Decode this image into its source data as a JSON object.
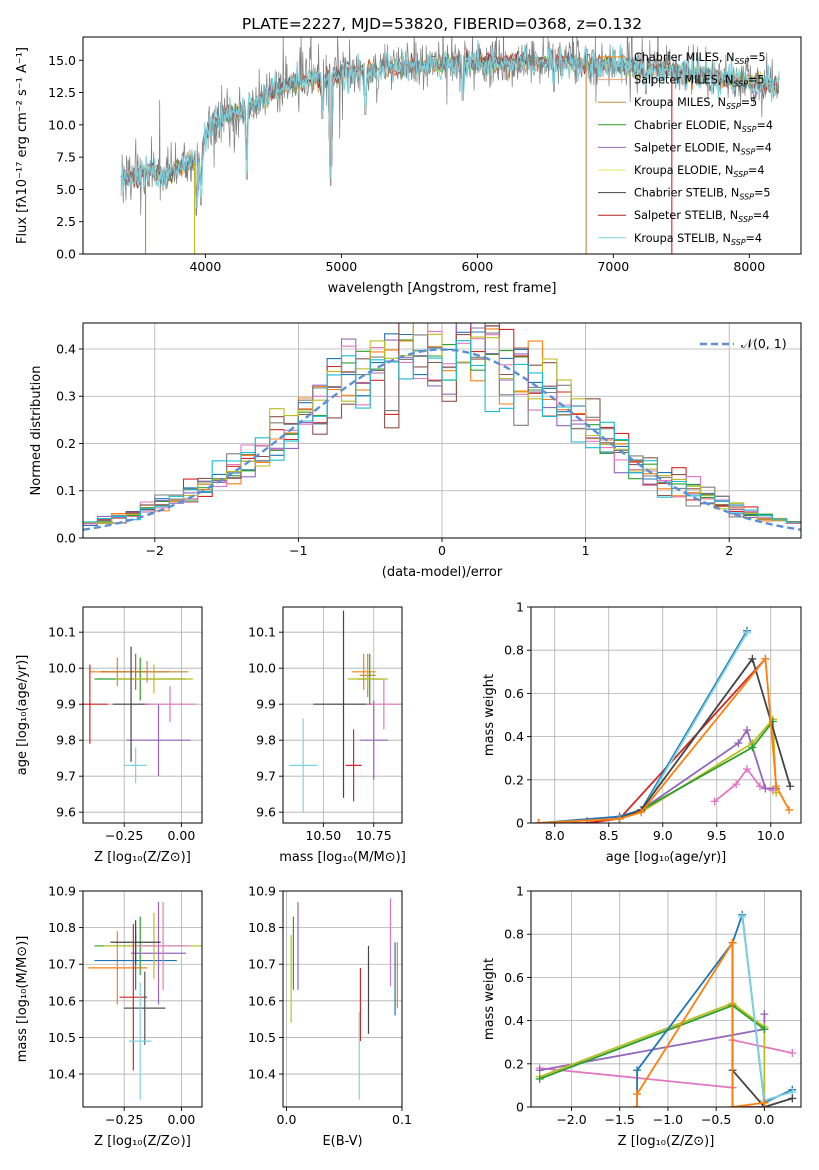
{
  "figure": {
    "title": "PLATE=2227, MJD=53820, FIBERID=0368, z=0.132"
  },
  "colors": [
    "#1f77b4",
    "#ff7f0e",
    "#2ca02c",
    "#d62728",
    "#9467bd",
    "#8c564b",
    "#e377c2",
    "#7f7f7f",
    "#bcbd22",
    "#17becf"
  ],
  "legend": {
    "entries": [
      {
        "model": "Chabrier MILES",
        "n_ssp": 5,
        "color": "#ff7f0e"
      },
      {
        "model": "Salpeter MILES",
        "n_ssp": 5,
        "color": "#f3a06a"
      },
      {
        "model": "Kroupa MILES",
        "n_ssp": 5,
        "color": "#c58a3c"
      },
      {
        "model": "Chabrier ELODIE",
        "n_ssp": 4,
        "color": "#2ca02c"
      },
      {
        "model": "Salpeter ELODIE",
        "n_ssp": 4,
        "color": "#9467bd"
      },
      {
        "model": "Kroupa ELODIE",
        "n_ssp": 4,
        "color": "#dfe86a"
      },
      {
        "model": "Chabrier STELIB",
        "n_ssp": 5,
        "color": "#444444"
      },
      {
        "model": "Salpeter STELIB",
        "n_ssp": 4,
        "color": "#b22222"
      },
      {
        "model": "Kroupa STELIB",
        "n_ssp": 4,
        "color": "#7fd3e0"
      }
    ],
    "n_prefix": "N",
    "n_sub": "SSP",
    "n_eq": "="
  },
  "chart_data": [
    {
      "id": "spectrum",
      "type": "line",
      "xlabel": "wavelength [Angstrom, rest frame]",
      "ylabel": "Flux [fλ10⁻¹⁷ erg cm⁻² s⁻¹ A⁻¹]",
      "xlim": [
        3100,
        8380
      ],
      "ylim": [
        0,
        16.8
      ],
      "xticks": [
        4000,
        5000,
        6000,
        7000,
        8000
      ],
      "yticks": [
        0.0,
        2.5,
        5.0,
        7.5,
        10.0,
        12.5,
        15.0
      ],
      "ytick_labels": [
        "0.0",
        "2.5",
        "5.0",
        "7.5",
        "10.0",
        "12.5",
        "15.0"
      ],
      "data_range": [
        3380,
        8220
      ],
      "continuum": [
        [
          3380,
          5.8
        ],
        [
          3520,
          6.2
        ],
        [
          3600,
          6.5
        ],
        [
          3700,
          5.8
        ],
        [
          3800,
          6.8
        ],
        [
          3900,
          7.2
        ],
        [
          3960,
          6.8
        ],
        [
          4000,
          9.2
        ],
        [
          4100,
          10.5
        ],
        [
          4300,
          11.2
        ],
        [
          4500,
          12.6
        ],
        [
          4700,
          13.4
        ],
        [
          5000,
          14.0
        ],
        [
          5300,
          14.4
        ],
        [
          5600,
          14.6
        ],
        [
          5900,
          14.9
        ],
        [
          6200,
          14.8
        ],
        [
          6600,
          14.9
        ],
        [
          7000,
          14.6
        ],
        [
          7400,
          14.2
        ],
        [
          7800,
          13.6
        ],
        [
          8200,
          13.0
        ]
      ],
      "absorption_features": [
        [
          3934,
          3.0
        ],
        [
          3968,
          3.8
        ],
        [
          4102,
          9.0
        ],
        [
          4304,
          5.8
        ],
        [
          4861,
          10.5
        ],
        [
          4922,
          5.3
        ],
        [
          5175,
          10.8
        ],
        [
          5270,
          12.8
        ],
        [
          5893,
          11.9
        ],
        [
          6563,
          12.6
        ],
        [
          7240,
          12.4
        ],
        [
          7600,
          13.6
        ]
      ],
      "model_dropouts": [
        {
          "x": 3560,
          "y": 0
        },
        {
          "x": 3920,
          "y": 0
        },
        {
          "x": 6800,
          "y": 0
        },
        {
          "x": 7430,
          "y": 0
        }
      ]
    },
    {
      "id": "residuals",
      "type": "line",
      "xlabel": "(data-model)/error",
      "ylabel": "Normed distribution",
      "xlim": [
        -2.5,
        2.5
      ],
      "ylim": [
        0,
        0.455
      ],
      "xticks": [
        -2,
        -1,
        0,
        1,
        2
      ],
      "xtick_labels": [
        "−2",
        "−1",
        "0",
        "1",
        "2"
      ],
      "yticks": [
        0.0,
        0.1,
        0.2,
        0.3,
        0.4
      ],
      "ytick_labels": [
        "0.0",
        "0.1",
        "0.2",
        "0.3",
        "0.4"
      ],
      "grid": true,
      "bin_width": 0.1,
      "reference": {
        "name": "𝒩(0, 1)",
        "color": "#5b8fd6"
      },
      "legend_loc": "upper right"
    },
    {
      "id": "age_vs_Z",
      "type": "scatter",
      "xlabel": "Z [log₁₀(Z/Z⊙)]",
      "ylabel": "age  [log₁₀(age/yr)]",
      "xlim": [
        -0.43,
        0.09
      ],
      "ylim": [
        9.57,
        10.17
      ],
      "xticks": [
        -0.25,
        0.0
      ],
      "xtick_labels": [
        "−0.25",
        "0.00"
      ],
      "yticks": [
        9.6,
        9.7,
        9.8,
        9.9,
        10.0,
        10.1
      ],
      "grid": true,
      "points": [
        {
          "x": -0.28,
          "y": 9.99,
          "xerr": 0.12,
          "yerr": 0.04,
          "color": "#ff7f0e"
        },
        {
          "x": -0.2,
          "y": 9.99,
          "xerr": 0.15,
          "yerr": 0.05,
          "color": "#d95319"
        },
        {
          "x": -0.15,
          "y": 9.99,
          "xerr": 0.18,
          "yerr": 0.03,
          "color": "#c58a3c"
        },
        {
          "x": -0.18,
          "y": 9.97,
          "xerr": 0.2,
          "yerr": 0.06,
          "color": "#2ca02c"
        },
        {
          "x": -0.1,
          "y": 9.8,
          "xerr": 0.14,
          "yerr": 0.1,
          "color": "#9467bd"
        },
        {
          "x": -0.12,
          "y": 9.97,
          "xerr": 0.17,
          "yerr": 0.04,
          "color": "#bcbd22"
        },
        {
          "x": -0.22,
          "y": 9.9,
          "xerr": 0.08,
          "yerr": 0.16,
          "color": "#444444"
        },
        {
          "x": -0.4,
          "y": 9.9,
          "xerr": 0.08,
          "yerr": 0.11,
          "color": "#d62728"
        },
        {
          "x": -0.2,
          "y": 9.73,
          "xerr": 0.05,
          "yerr": 0.05,
          "color": "#7fd3e0"
        },
        {
          "x": -0.05,
          "y": 9.9,
          "xerr": 0.11,
          "yerr": 0.05,
          "color": "#e377c2"
        }
      ]
    },
    {
      "id": "age_vs_mass",
      "type": "scatter",
      "xlabel": "mass [log₁₀(M/M⊙)]",
      "ylabel": "",
      "xlim": [
        10.3,
        10.89
      ],
      "ylim": [
        9.57,
        10.17
      ],
      "xticks": [
        10.5,
        10.75
      ],
      "xtick_labels": [
        "10.50",
        "10.75"
      ],
      "yticks": [
        9.6,
        9.7,
        9.8,
        9.9,
        10.0,
        10.1
      ],
      "grid": true,
      "points": [
        {
          "x": 10.7,
          "y": 9.99,
          "xerr": 0.06,
          "yerr": 0.05,
          "color": "#ff7f0e"
        },
        {
          "x": 10.72,
          "y": 9.98,
          "xerr": 0.04,
          "yerr": 0.06,
          "color": "#c58a3c"
        },
        {
          "x": 10.73,
          "y": 9.97,
          "xerr": 0.06,
          "yerr": 0.07,
          "color": "#2ca02c"
        },
        {
          "x": 10.75,
          "y": 9.8,
          "xerr": 0.07,
          "yerr": 0.11,
          "color": "#9467bd"
        },
        {
          "x": 10.72,
          "y": 9.97,
          "xerr": 0.1,
          "yerr": 0.03,
          "color": "#bcbd22"
        },
        {
          "x": 10.6,
          "y": 9.9,
          "xerr": 0.15,
          "yerr": 0.26,
          "color": "#444444"
        },
        {
          "x": 10.65,
          "y": 9.73,
          "xerr": 0.04,
          "yerr": 0.1,
          "color": "#d62728"
        },
        {
          "x": 10.4,
          "y": 9.73,
          "xerr": 0.07,
          "yerr": 0.13,
          "color": "#7fd3e0"
        },
        {
          "x": 10.8,
          "y": 9.9,
          "xerr": 0.09,
          "yerr": 0.07,
          "color": "#e377c2"
        }
      ]
    },
    {
      "id": "weight_vs_age",
      "type": "line",
      "xlabel": "age  [log₁₀(age/yr)]",
      "ylabel": "mass weight",
      "xlim": [
        7.78,
        10.28
      ],
      "ylim": [
        0,
        1.0
      ],
      "xticks": [
        8.0,
        8.5,
        9.0,
        9.5,
        10.0
      ],
      "xtick_labels": [
        "8.0",
        "8.5",
        "9.0",
        "9.5",
        "10.0"
      ],
      "yticks": [
        0.0,
        0.2,
        0.4,
        0.6,
        0.8,
        1.0
      ],
      "grid": true,
      "series": [
        {
          "color": "#e377c2",
          "x": [
            9.48,
            9.68,
            9.78,
            9.9,
            10.02
          ],
          "y": [
            0.1,
            0.18,
            0.25,
            0.17,
            0.15
          ]
        },
        {
          "color": "#9467bd",
          "x": [
            8.3,
            8.6,
            8.8,
            9.7,
            9.78,
            9.95,
            10.05
          ],
          "y": [
            0.01,
            0.03,
            0.06,
            0.37,
            0.43,
            0.16,
            0.16
          ]
        },
        {
          "color": "#bcbd22",
          "x": [
            8.6,
            8.8,
            9.83,
            10.02,
            10.05
          ],
          "y": [
            0.02,
            0.05,
            0.37,
            0.48,
            0.14
          ]
        },
        {
          "color": "#2ca02c",
          "x": [
            8.6,
            8.8,
            9.83,
            10.02
          ],
          "y": [
            0.02,
            0.06,
            0.35,
            0.47
          ]
        },
        {
          "color": "#d62728",
          "x": [
            7.85,
            8.3,
            8.6,
            9.95
          ],
          "y": [
            0.0,
            0.0,
            0.02,
            0.76
          ]
        },
        {
          "color": "#1f77b4",
          "x": [
            7.85,
            8.6,
            8.8,
            9.78
          ],
          "y": [
            0.0,
            0.03,
            0.06,
            0.89
          ]
        },
        {
          "color": "#7fd3e0",
          "x": [
            7.85,
            8.6,
            8.8,
            9.78
          ],
          "y": [
            0.0,
            0.02,
            0.05,
            0.88
          ]
        },
        {
          "color": "#444444",
          "x": [
            8.6,
            8.8,
            9.83,
            10.18
          ],
          "y": [
            0.02,
            0.06,
            0.76,
            0.17
          ]
        },
        {
          "color": "#ff7f0e",
          "x": [
            7.85,
            8.6,
            8.8,
            9.95,
            10.05,
            10.17
          ],
          "y": [
            0.0,
            0.02,
            0.05,
            0.76,
            0.17,
            0.06
          ]
        }
      ]
    },
    {
      "id": "mass_vs_Z",
      "type": "scatter",
      "xlabel": "Z [log₁₀(Z/Z⊙)]",
      "ylabel": "mass [log₁₀(M/M⊙)]",
      "xlim": [
        -0.43,
        0.09
      ],
      "ylim": [
        10.31,
        10.9
      ],
      "xticks": [
        -0.25,
        0.0
      ],
      "xtick_labels": [
        "−0.25",
        "0.00"
      ],
      "yticks": [
        10.4,
        10.5,
        10.6,
        10.7,
        10.8,
        10.9
      ],
      "grid": true,
      "points": [
        {
          "x": -0.28,
          "y": 10.69,
          "xerr": 0.13,
          "yerr": 0.1,
          "color": "#ff7f0e"
        },
        {
          "x": -0.2,
          "y": 10.71,
          "xerr": 0.18,
          "yerr": 0.08,
          "color": "#1f77b4"
        },
        {
          "x": -0.18,
          "y": 10.75,
          "xerr": 0.2,
          "yerr": 0.08,
          "color": "#2ca02c"
        },
        {
          "x": -0.1,
          "y": 10.73,
          "xerr": 0.12,
          "yerr": 0.14,
          "color": "#9467bd"
        },
        {
          "x": -0.12,
          "y": 10.75,
          "xerr": 0.22,
          "yerr": 0.09,
          "color": "#bcbd22"
        },
        {
          "x": -0.2,
          "y": 10.76,
          "xerr": 0.11,
          "yerr": 0.06,
          "color": "#444444"
        },
        {
          "x": -0.21,
          "y": 10.61,
          "xerr": 0.06,
          "yerr": 0.2,
          "color": "#d62728"
        },
        {
          "x": -0.16,
          "y": 10.58,
          "xerr": 0.09,
          "yerr": 0.1,
          "color": "#555555"
        },
        {
          "x": -0.18,
          "y": 10.49,
          "xerr": 0.05,
          "yerr": 0.16,
          "color": "#7fd3e0"
        },
        {
          "x": -0.08,
          "y": 10.75,
          "xerr": 0.12,
          "yerr": 0.12,
          "color": "#e377c2"
        }
      ]
    },
    {
      "id": "mass_vs_ebv",
      "type": "scatter",
      "xlabel": "E(B-V)",
      "ylabel": "",
      "xlim": [
        -0.003,
        0.1
      ],
      "ylim": [
        10.31,
        10.9
      ],
      "xticks": [
        0.0,
        0.1
      ],
      "xtick_labels": [
        "0.0",
        "0.1"
      ],
      "yticks": [
        10.4,
        10.5,
        10.6,
        10.7,
        10.8,
        10.9
      ],
      "grid": true,
      "points": [
        {
          "x": 0.004,
          "y": 10.66,
          "yerr": 0.12,
          "color": "#bcbd22"
        },
        {
          "x": 0.006,
          "y": 10.73,
          "yerr": 0.1,
          "color": "#2ca02c"
        },
        {
          "x": 0.01,
          "y": 10.75,
          "yerr": 0.12,
          "color": "#9467bd"
        },
        {
          "x": 0.064,
          "y": 10.59,
          "yerr": 0.1,
          "color": "#d62728"
        },
        {
          "x": 0.063,
          "y": 10.45,
          "yerr": 0.12,
          "color": "#7fd3e0"
        },
        {
          "x": 0.071,
          "y": 10.63,
          "yerr": 0.12,
          "color": "#444444"
        },
        {
          "x": 0.09,
          "y": 10.76,
          "yerr": 0.12,
          "color": "#e377c2"
        },
        {
          "x": 0.094,
          "y": 10.66,
          "yerr": 0.1,
          "color": "#1f77b4"
        },
        {
          "x": 0.096,
          "y": 10.67,
          "yerr": 0.09,
          "color": "#ff7f0e"
        }
      ]
    },
    {
      "id": "weight_vs_Z",
      "type": "line",
      "xlabel": "Z [log₁₀(Z/Z⊙)]",
      "ylabel": "mass weight",
      "xlim": [
        -2.42,
        0.38
      ],
      "ylim": [
        0,
        1.0
      ],
      "xticks": [
        -2.0,
        -1.5,
        -1.0,
        -0.5,
        0.0
      ],
      "xtick_labels": [
        "−2.0",
        "−1.5",
        "−1.0",
        "−0.5",
        "0.0"
      ],
      "yticks": [
        0.0,
        0.2,
        0.4,
        0.6,
        0.8,
        1.0
      ],
      "grid": true,
      "series": [
        {
          "color": "#e377c2",
          "x": [
            -2.33,
            -0.33,
            -0.33,
            0.29
          ],
          "y": [
            0.18,
            0.09,
            0.31,
            0.25
          ]
        },
        {
          "color": "#9467bd",
          "x": [
            -2.33,
            0.0,
            0.0
          ],
          "y": [
            0.17,
            0.36,
            0.43
          ]
        },
        {
          "color": "#bcbd22",
          "x": [
            -2.33,
            -0.33,
            0.0,
            0.0
          ],
          "y": [
            0.14,
            0.48,
            0.37,
            0.0
          ]
        },
        {
          "color": "#2ca02c",
          "x": [
            -2.33,
            -0.33,
            0.0
          ],
          "y": [
            0.13,
            0.47,
            0.36
          ]
        },
        {
          "color": "#d62728",
          "x": [
            -0.33,
            -0.33,
            0.0
          ],
          "y": [
            0.76,
            0.0,
            0.0
          ]
        },
        {
          "color": "#1f77b4",
          "x": [
            -1.32,
            -1.32,
            -0.33,
            -0.23,
            0.0,
            0.29
          ],
          "y": [
            0.0,
            0.17,
            0.76,
            0.89,
            0.02,
            0.08
          ]
        },
        {
          "color": "#7fd3e0",
          "x": [
            -0.23,
            0.0,
            0.29
          ],
          "y": [
            0.88,
            0.03,
            0.07
          ]
        },
        {
          "color": "#444444",
          "x": [
            -0.33,
            -0.33,
            0.0,
            0.29
          ],
          "y": [
            0.76,
            0.17,
            0.0,
            0.04
          ]
        },
        {
          "color": "#ff7f0e",
          "x": [
            -1.32,
            -1.32,
            -0.33,
            -0.33,
            0.0,
            0.0
          ],
          "y": [
            0.0,
            0.06,
            0.76,
            0.0,
            0.02,
            0.0
          ]
        }
      ]
    }
  ]
}
